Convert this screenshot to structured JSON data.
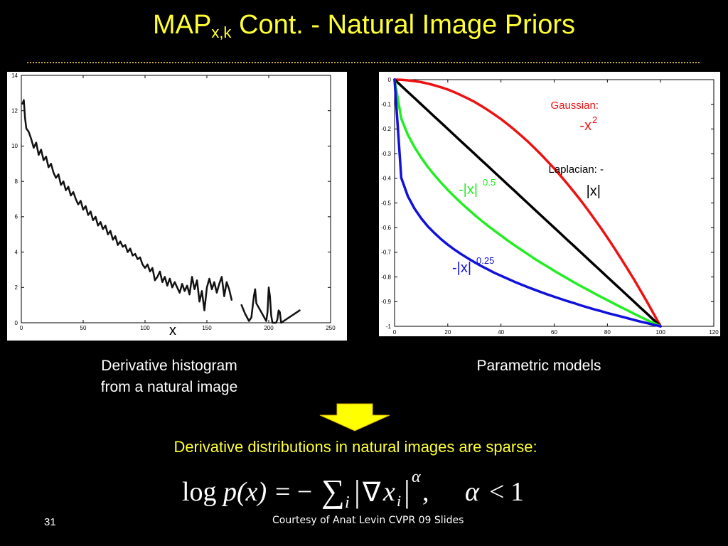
{
  "slide": {
    "title_main": "MAP",
    "title_sub": "x,k",
    "title_rest": " Cont. - Natural Image Priors",
    "left_caption_line1": "Derivative histogram",
    "left_caption_line2": "from a natural image",
    "right_caption": "Parametric models",
    "statement": "Derivative distributions in natural images are sparse:",
    "formula": {
      "log": "log",
      "p_of_x": "p(x)",
      "equals_minus": "= −",
      "sum": "∑",
      "sub_i": "i",
      "abs_open": "|",
      "nabla": "∇",
      "x": "x",
      "x_sub": "i",
      "abs_close": "|",
      "alpha_sup": "α",
      "comma": ",",
      "alpha": "α",
      "less": "<",
      "one": "1"
    },
    "slide_number": "31",
    "credit": "Courtesy of Anat Levin CVPR 09 Slides"
  },
  "colors": {
    "background": "#000000",
    "title": "#ffff33",
    "divider": "#c8a84a",
    "arrow": "#ffff00",
    "gaussian": "#ee1111",
    "laplacian": "#000000",
    "pow05": "#22ee22",
    "pow025": "#1111dd"
  },
  "chart_data": [
    {
      "type": "line",
      "xlim": [
        0,
        250
      ],
      "ylim": [
        0,
        14
      ],
      "xticks": [
        0,
        50,
        100,
        150,
        200,
        250
      ],
      "yticks": [
        0,
        2,
        4,
        6,
        8,
        10,
        12,
        14
      ],
      "grid": false,
      "xlabel": "x",
      "series": [
        {
          "x": [
            1,
            2,
            3,
            4,
            6,
            8,
            10,
            12,
            14,
            16,
            18,
            20,
            22,
            24,
            26,
            28,
            30,
            32,
            34,
            36,
            38,
            40,
            42,
            44,
            46,
            48,
            50,
            52,
            54,
            56,
            58,
            60,
            62,
            64,
            66,
            68,
            70,
            72,
            74,
            76,
            78,
            80,
            82,
            84,
            86,
            88,
            90,
            92,
            94,
            96,
            98,
            100,
            102,
            104,
            106,
            108,
            110,
            112,
            114,
            116,
            118,
            120,
            122,
            124,
            126,
            128,
            130,
            132,
            134,
            136,
            138,
            140,
            142,
            144,
            146,
            148,
            150,
            152,
            154,
            156,
            158,
            160,
            162,
            164,
            166,
            168,
            170
          ],
          "y": [
            12.4,
            12.6,
            11.6,
            11.0,
            10.8,
            10.4,
            9.9,
            10.2,
            9.5,
            9.8,
            9.2,
            9.4,
            8.8,
            9.0,
            8.5,
            8.2,
            8.4,
            7.8,
            8.0,
            7.5,
            7.7,
            7.2,
            7.4,
            7.0,
            6.7,
            6.9,
            6.4,
            6.6,
            6.1,
            6.3,
            5.8,
            6.0,
            5.5,
            5.7,
            5.3,
            5.5,
            5.0,
            5.2,
            4.7,
            4.9,
            4.4,
            4.6,
            4.3,
            4.4,
            4.0,
            4.2,
            3.8,
            3.9,
            3.6,
            3.7,
            3.3,
            3.1,
            3.3,
            2.9,
            3.1,
            2.4,
            2.6,
            2.9,
            2.3,
            2.6,
            2.1,
            2.5,
            2.0,
            2.3,
            2.0,
            1.7,
            2.2,
            1.8,
            2.1,
            1.6,
            2.6,
            1.9,
            2.4,
            1.2,
            1.8,
            0.7,
            2.0,
            2.5,
            1.9,
            2.3,
            1.7,
            2.2,
            2.6,
            1.5,
            2.3,
            1.9,
            1.3
          ]
        },
        {
          "x": [
            178,
            181,
            184,
            186,
            188,
            189,
            190,
            198,
            199,
            200,
            201,
            202,
            203,
            206,
            207,
            208,
            209,
            210,
            225
          ],
          "y": [
            1.0,
            0.5,
            0.1,
            0.3,
            1.5,
            1.9,
            1.1,
            0.1,
            0.6,
            2.0,
            1.5,
            0.4,
            0.0,
            0.0,
            0.2,
            0.7,
            0.6,
            0.0,
            0.7
          ]
        }
      ]
    },
    {
      "type": "line",
      "xlim": [
        0,
        120
      ],
      "ylim": [
        -1,
        0
      ],
      "xticks": [
        0,
        20,
        40,
        60,
        80,
        100,
        120
      ],
      "yticks": [
        0,
        -0.1,
        -0.2,
        -0.3,
        -0.4,
        -0.5,
        -0.6,
        -0.7,
        -0.8,
        -0.9,
        -1
      ],
      "grid": false,
      "x": [
        0,
        2.5,
        5,
        7.5,
        10,
        12.5,
        15,
        17.5,
        20,
        22.5,
        25,
        27.5,
        30,
        32.5,
        35,
        37.5,
        40,
        42.5,
        45,
        47.5,
        50,
        52.5,
        55,
        57.5,
        60,
        62.5,
        65,
        67.5,
        70,
        72.5,
        75,
        77.5,
        80,
        82.5,
        85,
        87.5,
        90,
        92.5,
        95,
        97.5,
        100
      ],
      "series": [
        {
          "name": "Gaussian: -x²",
          "values": [
            0,
            -0.001,
            -0.003,
            -0.006,
            -0.01,
            -0.016,
            -0.023,
            -0.031,
            -0.04,
            -0.051,
            -0.063,
            -0.076,
            -0.09,
            -0.106,
            -0.123,
            -0.141,
            -0.16,
            -0.181,
            -0.203,
            -0.226,
            -0.25,
            -0.276,
            -0.303,
            -0.331,
            -0.36,
            -0.391,
            -0.423,
            -0.456,
            -0.49,
            -0.526,
            -0.563,
            -0.601,
            -0.64,
            -0.681,
            -0.723,
            -0.766,
            -0.81,
            -0.856,
            -0.903,
            -0.951,
            -1
          ]
        },
        {
          "name": "Laplacian: -|x|",
          "values": [
            0,
            -0.025,
            -0.05,
            -0.075,
            -0.1,
            -0.125,
            -0.15,
            -0.175,
            -0.2,
            -0.225,
            -0.25,
            -0.275,
            -0.3,
            -0.325,
            -0.35,
            -0.375,
            -0.4,
            -0.425,
            -0.45,
            -0.475,
            -0.5,
            -0.525,
            -0.55,
            -0.575,
            -0.6,
            -0.625,
            -0.65,
            -0.675,
            -0.7,
            -0.725,
            -0.75,
            -0.775,
            -0.8,
            -0.825,
            -0.85,
            -0.875,
            -0.9,
            -0.925,
            -0.95,
            -0.975,
            -1
          ]
        },
        {
          "name": "-|x|^0.5",
          "values": [
            0,
            -0.158,
            -0.224,
            -0.274,
            -0.316,
            -0.354,
            -0.387,
            -0.418,
            -0.447,
            -0.474,
            -0.5,
            -0.524,
            -0.548,
            -0.57,
            -0.592,
            -0.612,
            -0.632,
            -0.652,
            -0.671,
            -0.689,
            -0.707,
            -0.725,
            -0.742,
            -0.758,
            -0.775,
            -0.791,
            -0.806,
            -0.822,
            -0.837,
            -0.851,
            -0.866,
            -0.88,
            -0.894,
            -0.908,
            -0.922,
            -0.935,
            -0.949,
            -0.962,
            -0.975,
            -0.987,
            -1
          ]
        },
        {
          "name": "-|x|^0.25",
          "values": [
            0,
            -0.398,
            -0.473,
            -0.523,
            -0.562,
            -0.595,
            -0.622,
            -0.647,
            -0.669,
            -0.689,
            -0.707,
            -0.724,
            -0.74,
            -0.755,
            -0.769,
            -0.783,
            -0.795,
            -0.807,
            -0.819,
            -0.83,
            -0.841,
            -0.851,
            -0.861,
            -0.871,
            -0.88,
            -0.889,
            -0.898,
            -0.906,
            -0.915,
            -0.923,
            -0.931,
            -0.938,
            -0.946,
            -0.953,
            -0.96,
            -0.967,
            -0.974,
            -0.981,
            -0.987,
            -0.994,
            -1
          ]
        }
      ],
      "labels": {
        "gaussian_text": "Gaussian:",
        "gaussian_formula": "-x",
        "gaussian_exp": "2",
        "laplacian_text": "Laplacian: -",
        "laplacian_formula": "|x|",
        "pow05_formula": "-|x|",
        "pow05_exp": "0.5",
        "pow025_formula": "-|x|",
        "pow025_exp": "0.25"
      }
    }
  ]
}
